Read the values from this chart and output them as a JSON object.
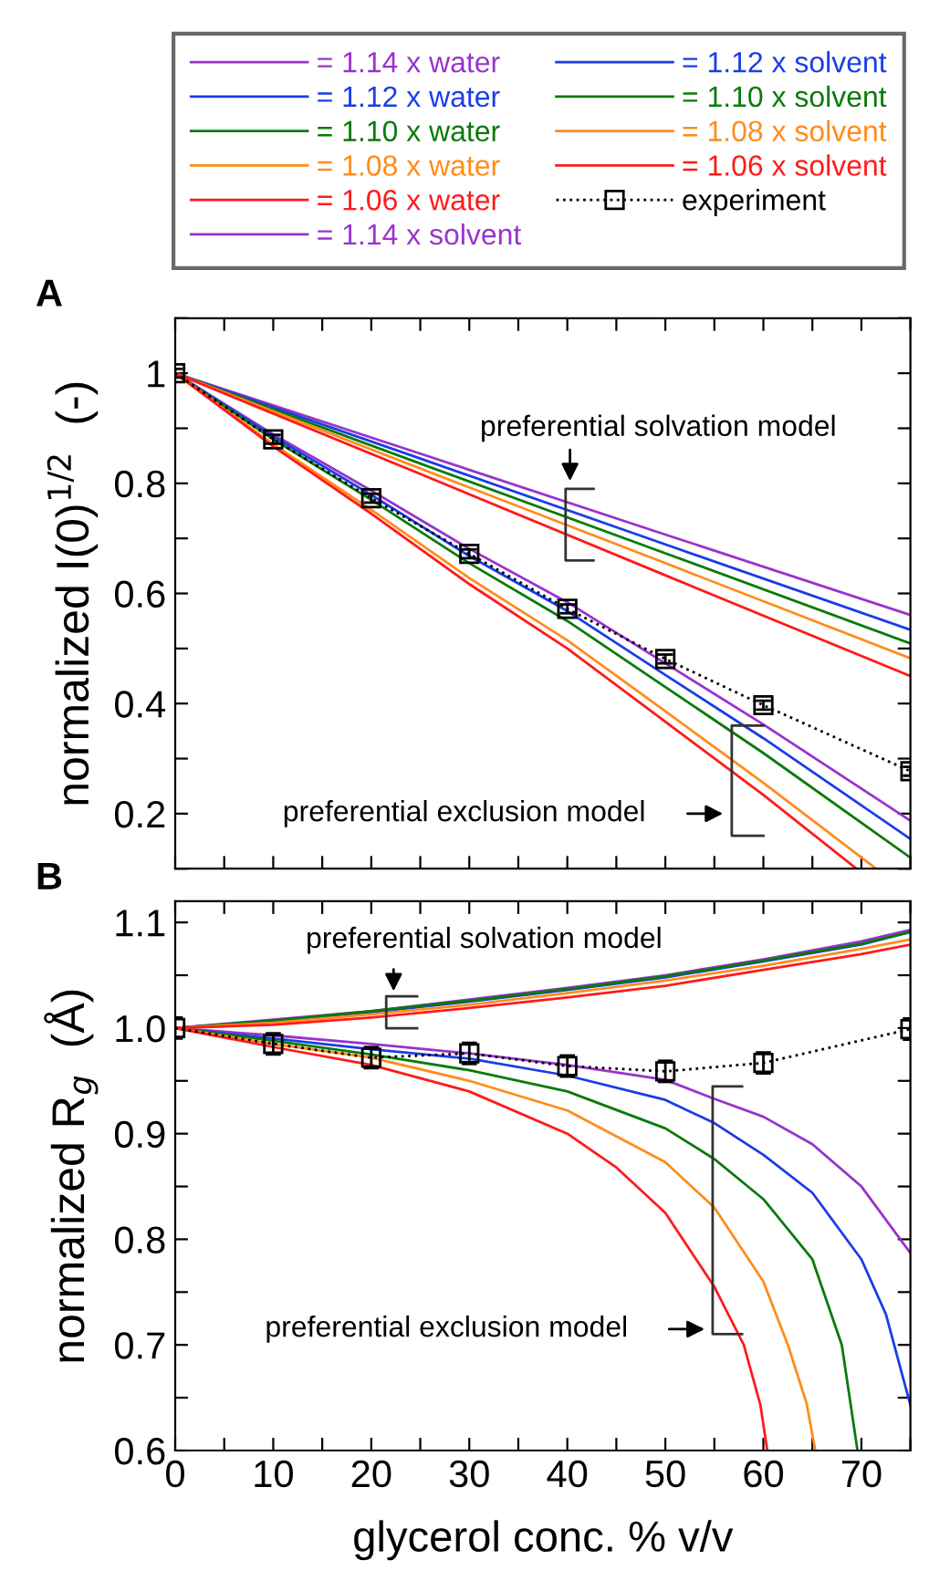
{
  "chart_data": [
    {
      "type": "line",
      "ylabel": "normalized I(0)$^{1/2}$  (-)",
      "legend": "top",
      "tick_labels": "y",
      "xlim": [
        0,
        75
      ],
      "ylim": [
        0.1,
        1.1
      ],
      "xticks": [
        0,
        {
          "value": 5,
          "label": null
        },
        10,
        {
          "value": 15,
          "label": null
        },
        20,
        {
          "value": 25,
          "label": null
        },
        30,
        {
          "value": 35,
          "label": null
        },
        40,
        {
          "value": 45,
          "label": null
        },
        50,
        {
          "value": 55,
          "label": null
        },
        60,
        {
          "value": 65,
          "label": null
        },
        70,
        {
          "value": 75,
          "label": null
        }
      ],
      "yticks": [
        {
          "value": 0.1,
          "label": null
        },
        0.2,
        {
          "value": 0.3,
          "label": null
        },
        0.4,
        {
          "value": 0.5,
          "label": null
        },
        0.6,
        {
          "value": 0.7,
          "label": null
        },
        0.8,
        {
          "value": 0.9,
          "label": null
        },
        {
          "value": 1.0,
          "label": "1"
        },
        {
          "value": 1.1,
          "label": null
        }
      ],
      "annotations": [
        "A",
        "preferential solvation model",
        "preferential exclusion model"
      ],
      "series": [
        {
          "name": "= 1.14 x water",
          "color": "#9933cc",
          "marker": "none",
          "x": [
            0,
            10,
            20,
            30,
            40,
            50,
            60,
            75
          ],
          "values": [
            1,
            0.889,
            0.787,
            0.681,
            0.584,
            0.473,
            0.362,
            0.187
          ]
        },
        {
          "name": "= 1.12 x water",
          "color": "#1a3de6",
          "marker": "none",
          "x": [
            0,
            10,
            20,
            30,
            40,
            50,
            60,
            75
          ],
          "values": [
            1,
            0.885,
            0.779,
            0.668,
            0.568,
            0.452,
            0.337,
            0.154
          ]
        },
        {
          "name": "= 1.10 x water",
          "color": "#0a7a0a",
          "marker": "none",
          "x": [
            0,
            10,
            20,
            30,
            40,
            50,
            60,
            75
          ],
          "values": [
            1,
            0.88,
            0.77,
            0.655,
            0.55,
            0.43,
            0.31,
            0.12
          ]
        },
        {
          "name": "= 1.08 x water",
          "color": "#ff8c1a",
          "marker": "none",
          "x": [
            0,
            10,
            20,
            30,
            40,
            50,
            60,
            71.5
          ],
          "values": [
            1,
            0.871,
            0.752,
            0.628,
            0.515,
            0.386,
            0.256,
            0.1
          ]
        },
        {
          "name": "= 1.06 x water",
          "color": "#ff1a1a",
          "marker": "none",
          "x": [
            0,
            10,
            20,
            30,
            40,
            50,
            60,
            69.5
          ],
          "values": [
            1,
            0.867,
            0.745,
            0.617,
            0.5,
            0.367,
            0.234,
            0.1
          ]
        },
        {
          "name": "= 1.14 x solvent",
          "color": "#9933cc",
          "marker": "none",
          "x": [
            0,
            25,
            50,
            75
          ],
          "values": [
            1,
            0.854,
            0.707,
            0.561
          ]
        },
        {
          "name": "= 1.12 x solvent",
          "color": "#1a3de6",
          "marker": "none",
          "x": [
            0,
            25,
            50,
            75
          ],
          "values": [
            1,
            0.845,
            0.689,
            0.534
          ]
        },
        {
          "name": "= 1.10 x solvent",
          "color": "#0a7a0a",
          "marker": "none",
          "x": [
            0,
            25,
            50,
            75
          ],
          "values": [
            1,
            0.836,
            0.673,
            0.509
          ]
        },
        {
          "name": "= 1.08 x solvent",
          "color": "#ff8c1a",
          "marker": "none",
          "x": [
            0,
            25,
            50,
            75
          ],
          "values": [
            1,
            0.827,
            0.655,
            0.482
          ]
        },
        {
          "name": "= 1.06 x solvent",
          "color": "#ff1a1a",
          "marker": "none",
          "x": [
            0,
            25,
            50,
            75
          ],
          "values": [
            1,
            0.817,
            0.633,
            0.45
          ]
        },
        {
          "name": "experiment",
          "color": "#000000",
          "marker": "square",
          "line_style": "dotted",
          "x": [
            0,
            10,
            20,
            30,
            40,
            50,
            60,
            75
          ],
          "values": [
            1.0,
            0.88,
            0.773,
            0.672,
            0.572,
            0.481,
            0.397,
            0.277
          ],
          "errors": [
            0.008,
            0.008,
            0.008,
            0.008,
            0.008,
            0.008,
            0.008,
            0.008
          ]
        }
      ]
    },
    {
      "type": "line",
      "xlabel": "glycerol conc. % v/v",
      "ylabel": "normalized R$_{g}$  (Å)",
      "xlim": [
        0,
        75
      ],
      "ylim": [
        0.6,
        1.12
      ],
      "xticks": [
        0,
        {
          "value": 5,
          "label": null
        },
        10,
        {
          "value": 15,
          "label": null
        },
        20,
        {
          "value": 25,
          "label": null
        },
        30,
        {
          "value": 35,
          "label": null
        },
        40,
        {
          "value": 45,
          "label": null
        },
        50,
        {
          "value": 55,
          "label": null
        },
        60,
        {
          "value": 65,
          "label": null
        },
        70,
        {
          "value": 75,
          "label": null
        }
      ],
      "yticks": [
        0.6,
        {
          "value": 0.65,
          "label": null
        },
        0.7,
        {
          "value": 0.75,
          "label": null
        },
        0.8,
        {
          "value": 0.85,
          "label": null
        },
        0.9,
        {
          "value": 0.95,
          "label": null
        },
        {
          "value": 1.0,
          "label": "1.0"
        },
        {
          "value": 1.05,
          "label": null
        },
        1.1
      ],
      "annotations": [
        "B",
        "preferential solvation model",
        "preferential exclusion model"
      ],
      "series": [
        {
          "color": "#9933cc",
          "marker": "none",
          "x": [
            0,
            10,
            20,
            30,
            40,
            50,
            55,
            60,
            65,
            70,
            75
          ],
          "values": [
            1,
            0.993,
            0.985,
            0.976,
            0.965,
            0.951,
            0.933,
            0.916,
            0.89,
            0.85,
            0.787
          ]
        },
        {
          "color": "#1a3de6",
          "marker": "none",
          "x": [
            0,
            10,
            20,
            30,
            40,
            50,
            55,
            60,
            65,
            70,
            72.5,
            75
          ],
          "values": [
            1,
            0.99,
            0.98,
            0.971,
            0.955,
            0.932,
            0.91,
            0.88,
            0.844,
            0.781,
            0.729,
            0.643
          ]
        },
        {
          "color": "#0a7a0a",
          "marker": "none",
          "x": [
            0,
            10,
            20,
            30,
            40,
            50,
            55,
            60,
            65,
            68,
            69.6
          ],
          "values": [
            1,
            0.988,
            0.975,
            0.96,
            0.94,
            0.905,
            0.876,
            0.838,
            0.781,
            0.7,
            0.6
          ]
        },
        {
          "color": "#ff8c1a",
          "marker": "none",
          "x": [
            0,
            10,
            20,
            30,
            40,
            50,
            55,
            60,
            62.5,
            64.4,
            65.3
          ],
          "values": [
            1,
            0.985,
            0.972,
            0.95,
            0.922,
            0.873,
            0.83,
            0.76,
            0.7,
            0.645,
            0.6
          ]
        },
        {
          "color": "#ff1a1a",
          "marker": "none",
          "x": [
            0,
            10,
            20,
            30,
            40,
            45,
            50,
            55,
            58,
            59.7,
            60.4
          ],
          "values": [
            1,
            0.982,
            0.965,
            0.94,
            0.9,
            0.868,
            0.825,
            0.755,
            0.7,
            0.643,
            0.6
          ]
        },
        {
          "color": "#9933cc",
          "marker": "none",
          "x": [
            0,
            10,
            20,
            30,
            40,
            50,
            60,
            70,
            75
          ],
          "values": [
            1,
            1.008,
            1.016,
            1.027,
            1.038,
            1.05,
            1.065,
            1.082,
            1.093
          ]
        },
        {
          "color": "#1a3de6",
          "marker": "none",
          "x": [
            0,
            10,
            20,
            30,
            40,
            50,
            60,
            70,
            75
          ],
          "values": [
            1,
            1.007,
            1.015,
            1.025,
            1.036,
            1.048,
            1.063,
            1.079,
            1.091
          ]
        },
        {
          "color": "#0a7a0a",
          "marker": "none",
          "x": [
            0,
            10,
            20,
            30,
            40,
            50,
            60,
            70,
            75
          ],
          "values": [
            1,
            1.007,
            1.016,
            1.026,
            1.037,
            1.049,
            1.064,
            1.08,
            1.091
          ]
        },
        {
          "color": "#ff8c1a",
          "marker": "none",
          "x": [
            0,
            10,
            20,
            30,
            40,
            50,
            60,
            70,
            75
          ],
          "values": [
            1,
            1.005,
            1.013,
            1.022,
            1.033,
            1.045,
            1.059,
            1.075,
            1.084
          ]
        },
        {
          "color": "#ff1a1a",
          "marker": "none",
          "x": [
            0,
            10,
            20,
            30,
            40,
            50,
            60,
            70,
            75
          ],
          "values": [
            1,
            1.003,
            1.01,
            1.019,
            1.029,
            1.04,
            1.055,
            1.07,
            1.079
          ]
        },
        {
          "color": "#000000",
          "marker": "square",
          "line_style": "dotted",
          "x": [
            0,
            10,
            20,
            30,
            40,
            50,
            60,
            75
          ],
          "values": [
            1.0,
            0.985,
            0.972,
            0.976,
            0.964,
            0.959,
            0.967,
            0.999
          ],
          "errors": [
            0.01,
            0.01,
            0.01,
            0.01,
            0.01,
            0.01,
            0.01,
            0.01
          ]
        }
      ]
    }
  ]
}
